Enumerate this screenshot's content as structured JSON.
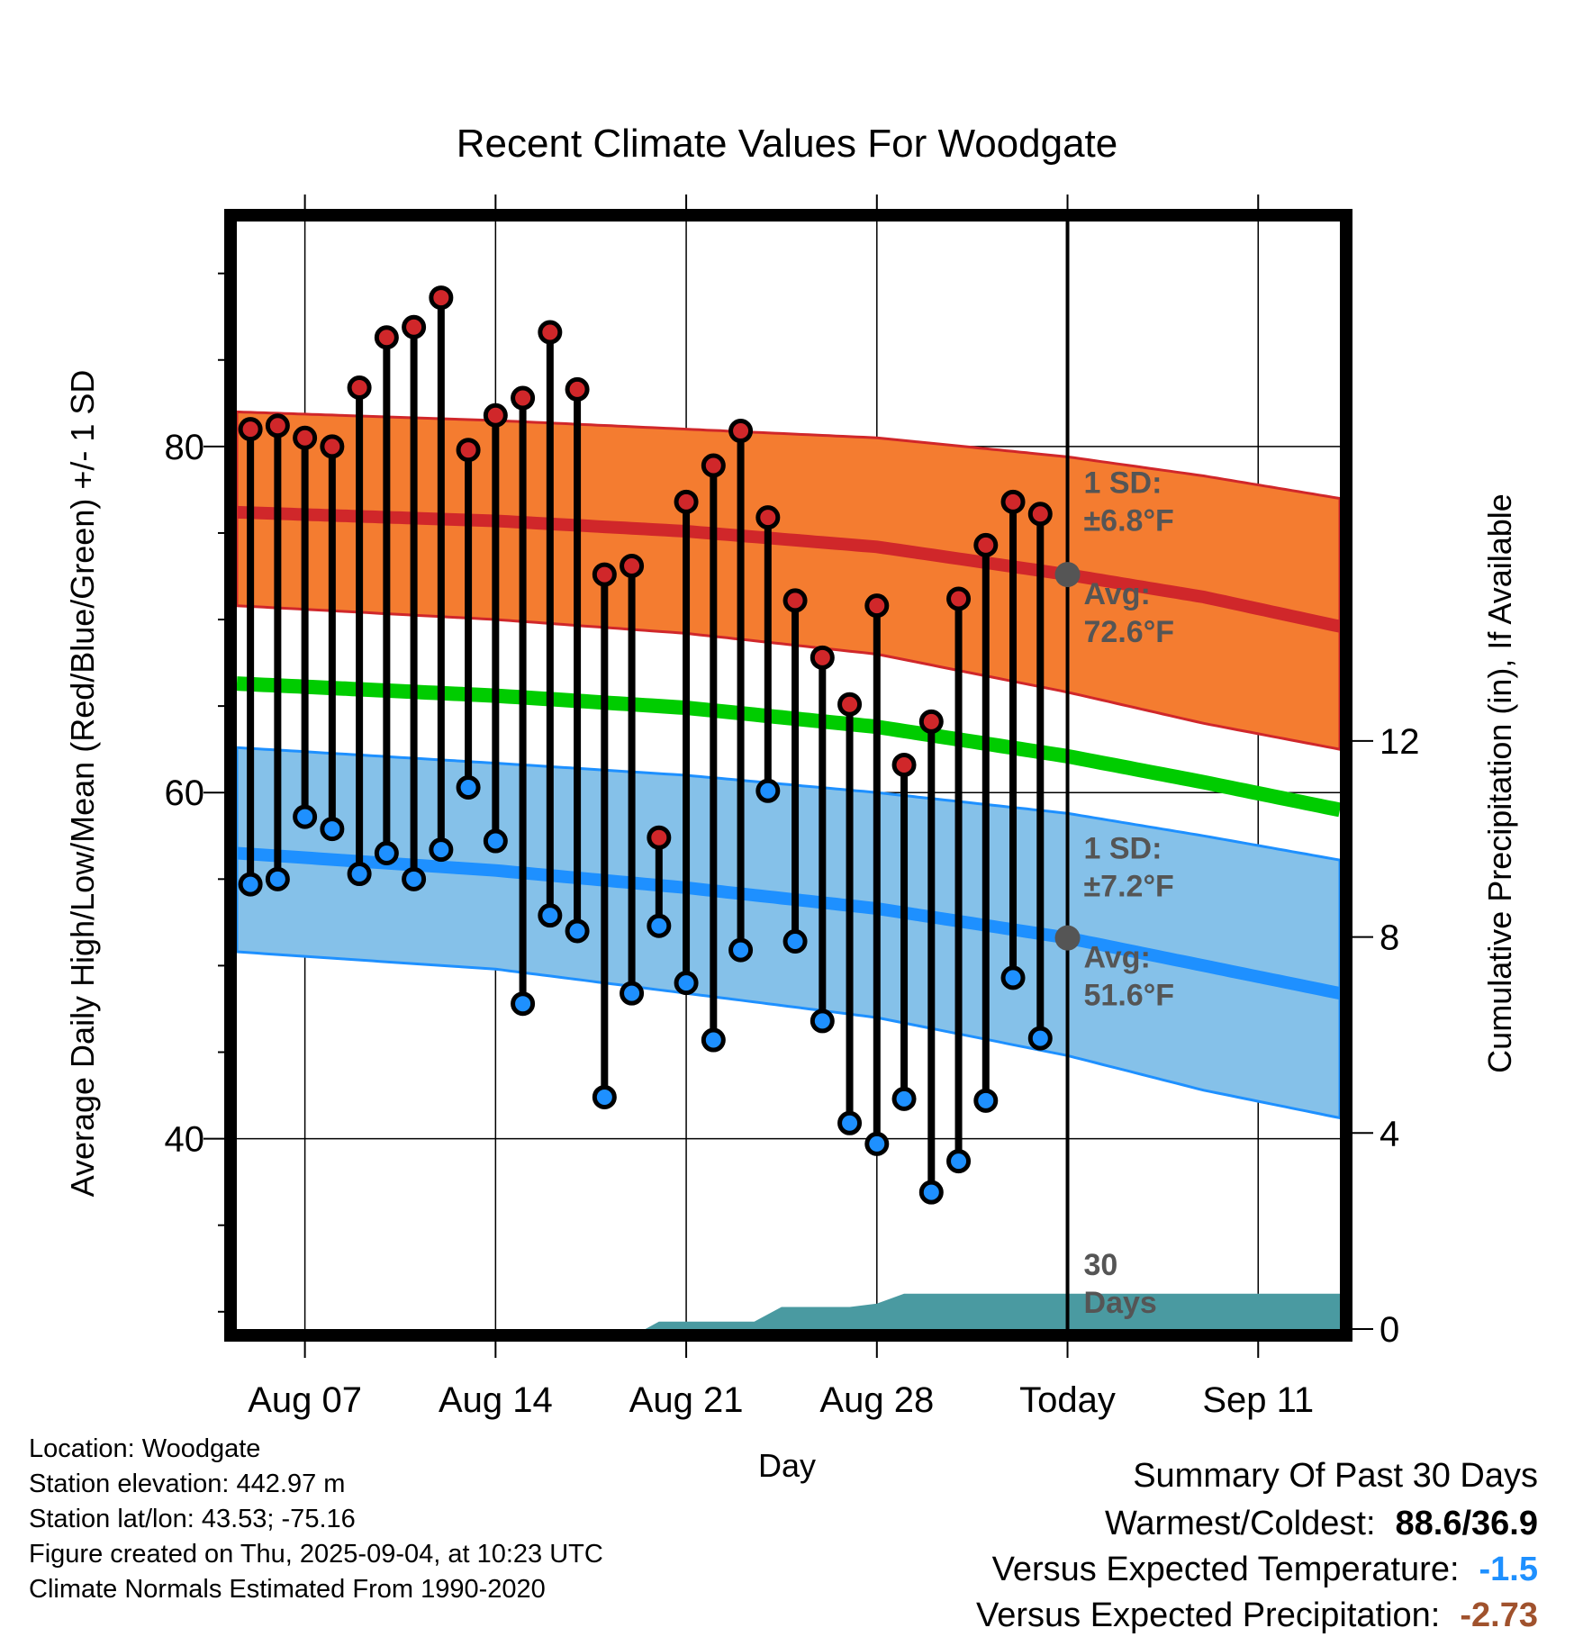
{
  "chart_data": {
    "type": "line",
    "title": "Recent Climate Values For Woodgate",
    "xlabel": "Day",
    "ylabel": "Average Daily High/Low/Mean (Red/Blue/Green) +/- 1 SD",
    "y2label": "Cumulative Precipitation (in), If Available",
    "ylim": [
      29,
      93
    ],
    "y2lim": [
      0,
      22.6
    ],
    "yticks": [
      40,
      60,
      80
    ],
    "y2ticks": [
      0,
      4,
      8,
      12
    ],
    "x_tick_labels": [
      {
        "day": 7,
        "label": "Aug 07"
      },
      {
        "day": 14,
        "label": "Aug 14"
      },
      {
        "day": 21,
        "label": "Aug 21"
      },
      {
        "day": 28,
        "label": "Aug 28"
      },
      {
        "day": 35,
        "label": "Today"
      },
      {
        "day": 42,
        "label": "Sep 11"
      }
    ],
    "xlim": [
      4.5,
      45
    ],
    "today_day": 35,
    "daily_high": [
      81.0,
      81.2,
      80.5,
      80.0,
      83.4,
      86.3,
      86.9,
      88.6,
      79.8,
      81.8,
      82.8,
      86.6,
      83.3,
      72.6,
      73.1,
      57.4,
      76.8,
      78.9,
      80.9,
      75.9,
      71.1,
      67.8,
      65.1,
      70.8,
      61.6,
      64.1,
      71.2,
      74.3,
      76.8,
      76.1
    ],
    "daily_low": [
      54.7,
      55.0,
      58.6,
      57.9,
      55.3,
      56.5,
      55.0,
      56.7,
      60.3,
      57.2,
      47.8,
      52.9,
      52.0,
      42.4,
      48.4,
      52.3,
      49.0,
      45.7,
      50.9,
      60.1,
      51.4,
      46.8,
      40.9,
      39.7,
      42.3,
      36.9,
      38.7,
      42.2,
      49.3,
      45.8
    ],
    "normal_high": {
      "days": [
        4.5,
        14,
        21,
        28,
        35,
        40,
        45
      ],
      "values": [
        76.2,
        75.7,
        75.1,
        74.2,
        72.6,
        71.3,
        69.6
      ]
    },
    "normal_low": {
      "days": [
        4.5,
        14,
        21,
        28,
        35,
        40,
        45
      ],
      "values": [
        56.5,
        55.5,
        54.5,
        53.3,
        51.6,
        50.0,
        48.4
      ]
    },
    "normal_mean": {
      "days": [
        4.5,
        14,
        21,
        28,
        35,
        40,
        45
      ],
      "values": [
        66.3,
        65.6,
        64.9,
        63.8,
        62.1,
        60.6,
        59.0
      ]
    },
    "high_sd_band": {
      "days": [
        4.5,
        14,
        21,
        28,
        35,
        40,
        45
      ],
      "upper": [
        82.0,
        81.5,
        81.0,
        80.5,
        79.4,
        78.3,
        77.0
      ],
      "lower": [
        70.8,
        70.0,
        69.2,
        68.0,
        65.8,
        64.0,
        62.5
      ]
    },
    "low_sd_band": {
      "days": [
        4.5,
        14,
        21,
        28,
        35,
        40,
        45
      ],
      "upper": [
        62.6,
        61.7,
        61.0,
        60.0,
        58.8,
        57.5,
        56.1
      ],
      "lower": [
        50.8,
        49.8,
        48.4,
        47.0,
        44.8,
        42.8,
        41.2
      ]
    },
    "cumulative_precip": {
      "days": [
        4.5,
        19.5,
        20,
        23.5,
        24.5,
        27,
        28,
        29,
        45
      ],
      "values": [
        0,
        0,
        0.15,
        0.15,
        0.45,
        0.45,
        0.52,
        0.72,
        0.72
      ]
    },
    "annotations": {
      "high_sd": "1 SD:",
      "high_sd_val": "±6.8°F",
      "high_avg": "Avg:",
      "high_avg_val": "72.6°F",
      "low_sd": "1 SD:",
      "low_sd_val": "±7.2°F",
      "low_avg": "Avg:",
      "low_avg_val": "51.6°F",
      "days_num": "30",
      "days_word": "Days"
    },
    "colors": {
      "high_band": "#f47c30",
      "high_line": "#d0272a",
      "low_band": "#85c1e9",
      "low_line": "#1e90ff",
      "mean_line": "#00cc00",
      "precip": "#4a9aa1",
      "high_dot": "#d0272a",
      "low_dot": "#1e90ff",
      "today_dot": "#555555"
    }
  },
  "info": {
    "location": "Location: Woodgate",
    "elevation": "Station elevation: 442.97 m",
    "latlon": "Station lat/lon: 43.53; -75.16",
    "created": "Figure created on Thu, 2025-09-04, at 10:23 UTC",
    "normals": "Climate Normals Estimated From 1990-2020"
  },
  "summary": {
    "heading": "Summary Of Past 30 Days",
    "warmest_label": "Warmest/Coldest:",
    "warmest_value": "88.6/36.9",
    "temp_label": "Versus Expected Temperature:",
    "temp_value": "-1.5",
    "temp_color": "#1e90ff",
    "precip_label": "Versus Expected Precipitation:",
    "precip_value": "-2.73",
    "precip_color": "#a0522d"
  }
}
